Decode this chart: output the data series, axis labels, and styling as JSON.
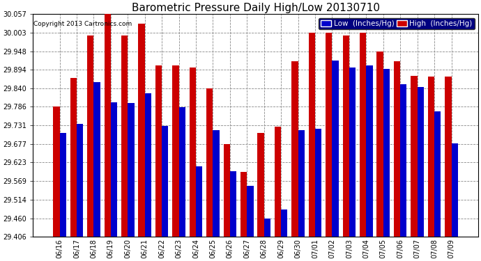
{
  "title": "Barometric Pressure Daily High/Low 20130710",
  "copyright": "Copyright 2013 Cartronics.com",
  "legend_low": "Low  (Inches/Hg)",
  "legend_high": "High  (Inches/Hg)",
  "categories": [
    "06/16",
    "06/17",
    "06/18",
    "06/19",
    "06/20",
    "06/21",
    "06/22",
    "06/23",
    "06/24",
    "06/25",
    "06/26",
    "06/27",
    "06/28",
    "06/29",
    "06/30",
    "07/01",
    "07/02",
    "07/03",
    "07/04",
    "07/05",
    "07/06",
    "07/07",
    "07/08",
    "07/09"
  ],
  "low_values": [
    29.71,
    29.735,
    29.858,
    29.8,
    29.798,
    29.825,
    29.73,
    29.785,
    29.612,
    29.718,
    29.598,
    29.555,
    29.46,
    29.486,
    29.718,
    29.722,
    29.922,
    29.9,
    29.908,
    29.896,
    29.852,
    29.843,
    29.773,
    29.678
  ],
  "high_values": [
    29.786,
    29.87,
    29.994,
    30.057,
    29.994,
    30.03,
    29.908,
    29.908,
    29.9,
    29.84,
    29.677,
    29.596,
    29.71,
    29.728,
    29.92,
    30.003,
    30.003,
    29.994,
    30.003,
    29.948,
    29.92,
    29.877,
    29.875,
    29.875
  ],
  "ylim_min": 29.406,
  "ylim_max": 30.057,
  "yticks": [
    29.406,
    29.46,
    29.514,
    29.569,
    29.623,
    29.677,
    29.731,
    29.786,
    29.84,
    29.894,
    29.948,
    30.003,
    30.057
  ],
  "bar_width": 0.38,
  "low_color": "#0000cc",
  "high_color": "#cc0000",
  "bg_color": "#ffffff",
  "plot_bg_color": "#ffffff",
  "grid_color": "#888888",
  "title_fontsize": 11,
  "tick_fontsize": 7,
  "copyright_fontsize": 6.5,
  "legend_fontsize": 7.5
}
